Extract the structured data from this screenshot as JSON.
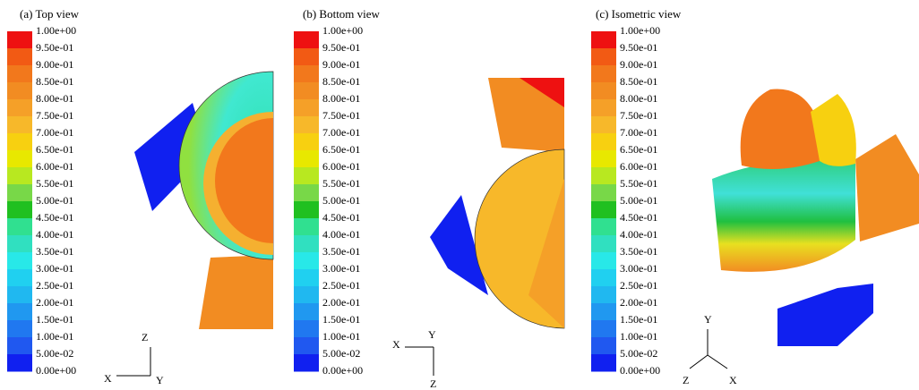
{
  "panels": [
    {
      "title": "(a) Top view",
      "axes": [
        "Z",
        "X",
        "Y"
      ]
    },
    {
      "title": "(b) Bottom view",
      "axes": [
        "Y",
        "X",
        "Z"
      ]
    },
    {
      "title": "(c) Isometric view",
      "axes": [
        "Y",
        "Z",
        "X"
      ]
    }
  ],
  "colorbar": {
    "labels": [
      "1.00e+00",
      "9.50e-01",
      "9.00e-01",
      "8.50e-01",
      "8.00e-01",
      "7.50e-01",
      "7.00e-01",
      "6.50e-01",
      "6.00e-01",
      "5.50e-01",
      "5.00e-01",
      "4.50e-01",
      "4.00e-01",
      "3.50e-01",
      "3.00e-01",
      "2.50e-01",
      "2.00e-01",
      "1.50e-01",
      "1.00e-01",
      "5.00e-02",
      "0.00e+00"
    ],
    "colors": [
      "#ee1111",
      "#f25a14",
      "#f2781c",
      "#f28c22",
      "#f5a028",
      "#f7b82a",
      "#f7d010",
      "#e8e800",
      "#b8e820",
      "#78d848",
      "#20c020",
      "#30e090",
      "#30e0c0",
      "#28e8e8",
      "#20d0f0",
      "#20b8f0",
      "#2098f0",
      "#2078f0",
      "#2058f0",
      "#1020f0"
    ]
  }
}
